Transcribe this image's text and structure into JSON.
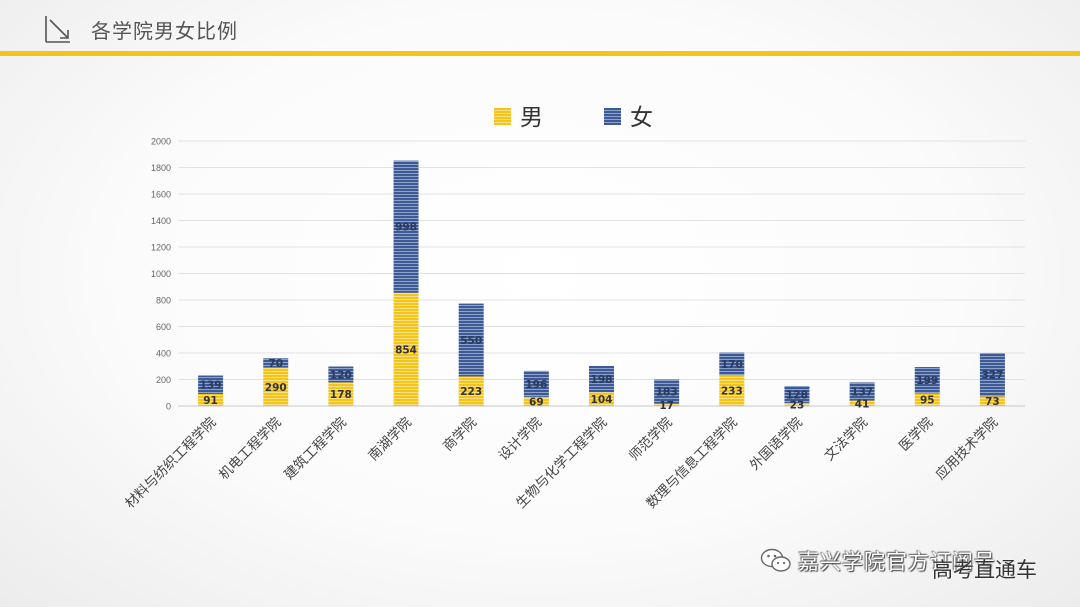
{
  "header": {
    "title": "各学院男女比例"
  },
  "watermark": {
    "account": "嘉兴学院官方订阅号",
    "overlay": "高考直通车"
  },
  "colors": {
    "male": "#f4c419",
    "female": "#3d5a94",
    "accent": "#f4c419"
  },
  "chart_data": {
    "type": "bar",
    "stacked": true,
    "title": "",
    "xlabel": "",
    "ylabel": "",
    "ylim": [
      0,
      2000
    ],
    "yticks": [
      0,
      200,
      400,
      600,
      800,
      1000,
      1200,
      1400,
      1600,
      1800,
      2000
    ],
    "grid": true,
    "legend": "top-center",
    "categories": [
      "材料与纺织工程学院",
      "机电工程学院",
      "建筑工程学院",
      "南湖学院",
      "商学院",
      "设计学院",
      "生物与化学工程学院",
      "师范学院",
      "数理与信息工程学院",
      "外国语学院",
      "文法学院",
      "医学院",
      "应用技术学院"
    ],
    "series": [
      {
        "name": "男",
        "values": [
          91,
          290,
          178,
          854,
          223,
          69,
          104,
          17,
          233,
          23,
          41,
          95,
          73
        ]
      },
      {
        "name": "女",
        "values": [
          139,
          70,
          120,
          998,
          550,
          196,
          198,
          183,
          170,
          128,
          137,
          199,
          327
        ]
      }
    ]
  }
}
